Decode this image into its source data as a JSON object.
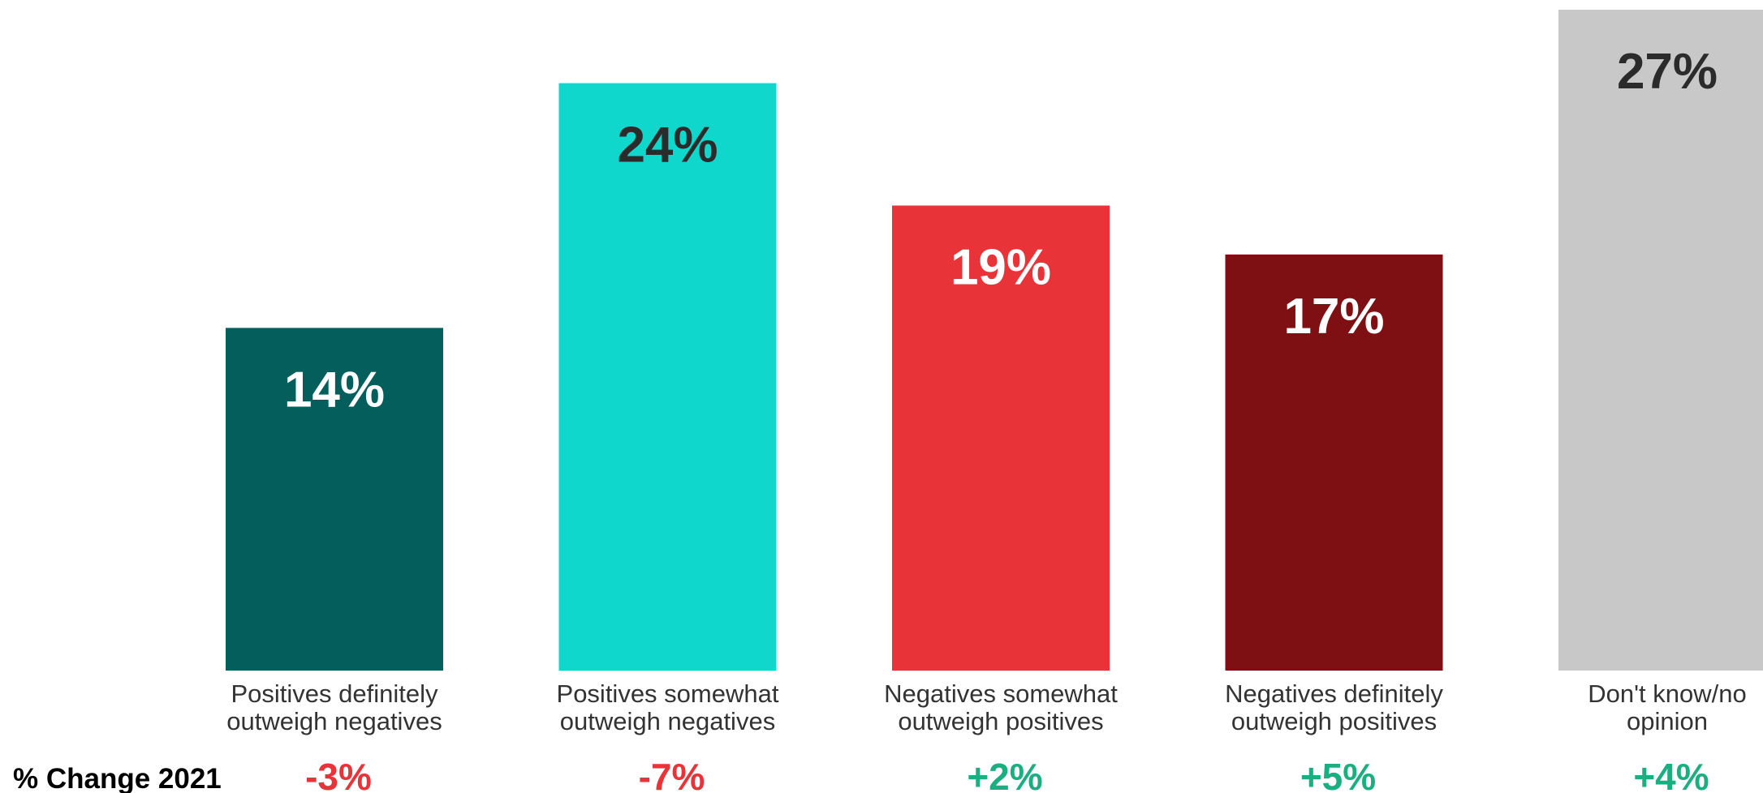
{
  "chart_data": {
    "type": "bar",
    "categories": [
      [
        "Positives definitely",
        "outweigh negatives"
      ],
      [
        "Positives somewhat",
        "outweigh negatives"
      ],
      [
        "Negatives somewhat",
        "outweigh positives"
      ],
      [
        "Negatives definitely",
        "outweigh positives"
      ],
      [
        "Don't know/no",
        "opinion"
      ]
    ],
    "values": [
      14,
      24,
      19,
      17,
      27
    ],
    "value_labels": [
      "14%",
      "24%",
      "19%",
      "17%",
      "27%"
    ],
    "bar_colors": [
      "#035E5C",
      "#0FD7CC",
      "#E83339",
      "#7E0F12",
      "#C8C8C8"
    ],
    "value_label_colors": [
      "#FFFFFF",
      "#2B2B2B",
      "#FFFFFF",
      "#FFFFFF",
      "#2B2B2B"
    ],
    "ylim": [
      0,
      27
    ],
    "grid": false,
    "legend": "none",
    "change_row": {
      "title": "% Change 2021",
      "values": [
        "-3%",
        "-7%",
        "+2%",
        "+5%",
        "+4%"
      ],
      "negative_color": "#E83339",
      "positive_color": "#1BAE80"
    }
  }
}
